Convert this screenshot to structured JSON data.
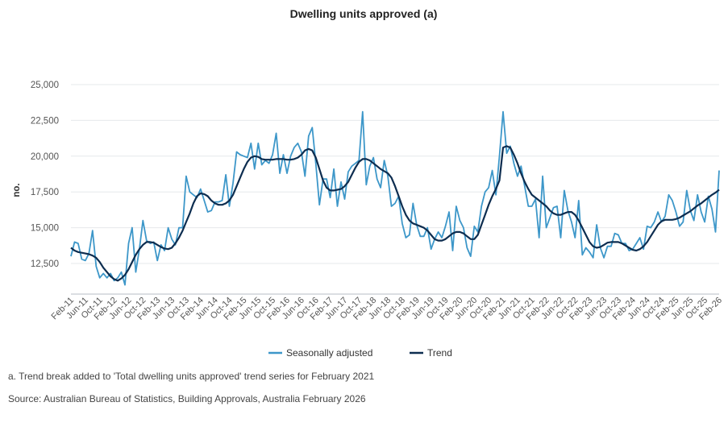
{
  "chart_data": {
    "type": "line",
    "title": "Dwelling units approved (a)",
    "xlabel": "",
    "ylabel": "no.",
    "ylim": [
      10000,
      25000
    ],
    "yticks": [
      "12,500",
      "15,000",
      "17,500",
      "20,000",
      "22,500",
      "25,000"
    ],
    "ytick_values": [
      12500,
      15000,
      17500,
      20000,
      22500,
      25000
    ],
    "grid": true,
    "x_start": "Feb-11",
    "x_end": "Feb-26",
    "frequency": "monthly",
    "xticks": [
      "Feb-11",
      "Jun-11",
      "Oct-11",
      "Feb-12",
      "Jun-12",
      "Oct-12",
      "Feb-13",
      "Jun-13",
      "Oct-13",
      "Feb-14",
      "Jun-14",
      "Oct-14",
      "Feb-15",
      "Jun-15",
      "Oct-15",
      "Feb-16",
      "Jun-16",
      "Oct-16",
      "Feb-17",
      "Jun-17",
      "Oct-17",
      "Feb-18",
      "Jun-18",
      "Oct-18",
      "Feb-19",
      "Jun-19",
      "Oct-19",
      "Feb-20",
      "Jun-20",
      "Oct-20",
      "Feb-21",
      "Jun-21",
      "Oct-21",
      "Feb-22",
      "Jun-22",
      "Oct-22",
      "Feb-23",
      "Jun-23",
      "Oct-23",
      "Feb-24",
      "Jun-24",
      "Oct-24",
      "Feb-25",
      "Jun-25",
      "Oct-25",
      "Feb-26"
    ],
    "legend_position": "bottom",
    "series": [
      {
        "name": "Seasonally adjusted",
        "color": "#3d97c9",
        "values": [
          13000,
          14000,
          13900,
          12800,
          12700,
          13200,
          14800,
          12300,
          11500,
          11800,
          11500,
          11800,
          11300,
          11500,
          11900,
          11000,
          13900,
          15000,
          11900,
          13500,
          15500,
          14100,
          13900,
          14000,
          12700,
          13800,
          13400,
          15000,
          14200,
          13800,
          15000,
          15000,
          18600,
          17500,
          17300,
          17100,
          17700,
          16900,
          16100,
          16200,
          16800,
          16800,
          16900,
          18700,
          16500,
          18100,
          20300,
          20100,
          20000,
          19900,
          20900,
          19100,
          20900,
          19400,
          19700,
          19500,
          20100,
          21600,
          18800,
          20100,
          18800,
          20000,
          20600,
          20900,
          20300,
          18600,
          21400,
          22000,
          19500,
          16600,
          18400,
          18400,
          17100,
          19100,
          16500,
          18200,
          17000,
          18900,
          19300,
          19500,
          19700,
          23100,
          18000,
          19300,
          19900,
          18400,
          17800,
          19700,
          18600,
          16500,
          16700,
          17200,
          15300,
          14300,
          14500,
          16700,
          15200,
          14400,
          14400,
          15000,
          13500,
          14200,
          14700,
          14300,
          15100,
          16100,
          13400,
          16500,
          15500,
          15000,
          13600,
          13000,
          15100,
          14700,
          16500,
          17500,
          17800,
          19000,
          17300,
          20000,
          23100,
          20200,
          20700,
          19500,
          18600,
          19300,
          17900,
          16500,
          16500,
          17000,
          14300,
          18600,
          15000,
          15700,
          16400,
          16500,
          14300,
          17600,
          16200,
          15400,
          14300,
          16900,
          13100,
          13600,
          13300,
          12900,
          15200,
          13600,
          12900,
          13700,
          13700,
          14600,
          14500,
          13900,
          13900,
          13400,
          13500,
          13900,
          14300,
          13500,
          15100,
          15000,
          15400,
          16100,
          15400,
          15800,
          17300,
          16900,
          16100,
          15100,
          15400,
          17600,
          16200,
          15500,
          17300,
          16100,
          15400,
          17200,
          16300,
          14700,
          19000
        ]
      },
      {
        "name": "Trend",
        "color": "#0d2d50",
        "values": [
          13600,
          13400,
          13300,
          13250,
          13200,
          13150,
          13050,
          12900,
          12600,
          12200,
          11900,
          11600,
          11400,
          11300,
          11450,
          11700,
          12100,
          12600,
          13100,
          13500,
          13800,
          14000,
          14000,
          13950,
          13800,
          13650,
          13550,
          13500,
          13600,
          13900,
          14300,
          14800,
          15400,
          16000,
          16700,
          17200,
          17400,
          17350,
          17200,
          16900,
          16700,
          16600,
          16600,
          16700,
          16900,
          17300,
          17900,
          18500,
          19100,
          19600,
          19900,
          20000,
          19950,
          19800,
          19750,
          19750,
          19750,
          19800,
          19800,
          19800,
          19750,
          19750,
          19800,
          19900,
          20100,
          20400,
          20500,
          20400,
          19900,
          19100,
          18300,
          17800,
          17600,
          17600,
          17650,
          17700,
          17900,
          18200,
          18700,
          19200,
          19600,
          19800,
          19800,
          19700,
          19500,
          19300,
          19100,
          18950,
          18800,
          18500,
          17900,
          17200,
          16500,
          15900,
          15500,
          15300,
          15200,
          15100,
          15000,
          14800,
          14500,
          14200,
          14100,
          14100,
          14200,
          14400,
          14600,
          14700,
          14700,
          14600,
          14400,
          14200,
          14200,
          14500,
          15200,
          15900,
          16600,
          17200,
          17700,
          18300,
          20600,
          20700,
          20600,
          20100,
          19500,
          18800,
          18200,
          17700,
          17300,
          17100,
          16900,
          16700,
          16500,
          16200,
          16000,
          15900,
          15900,
          16000,
          16100,
          16100,
          15900,
          15500,
          15000,
          14500,
          14000,
          13700,
          13600,
          13650,
          13800,
          13950,
          14000,
          14000,
          14000,
          13900,
          13750,
          13600,
          13450,
          13400,
          13500,
          13700,
          14000,
          14400,
          14800,
          15200,
          15450,
          15550,
          15550,
          15550,
          15600,
          15700,
          15850,
          16000,
          16150,
          16350,
          16550,
          16700,
          16900,
          17100,
          17300,
          17450,
          17650
        ]
      }
    ]
  },
  "footnotes": {
    "note_a": "a. Trend break added to 'Total dwelling units approved' trend series for February 2021",
    "source": "Source: Australian Bureau of Statistics, Building Approvals, Australia February 2026"
  }
}
